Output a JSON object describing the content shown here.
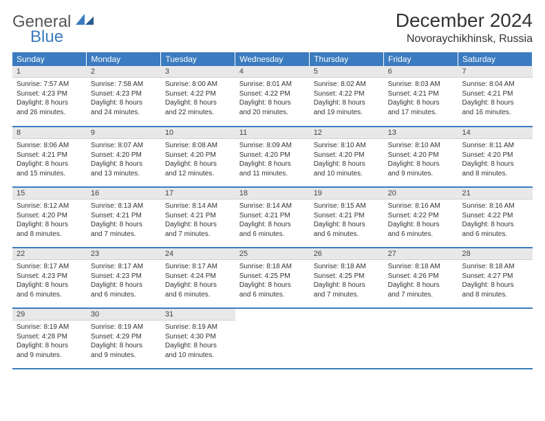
{
  "brand": {
    "part1": "General",
    "part2": "Blue"
  },
  "title": "December 2024",
  "location": "Novoraychikhinsk, Russia",
  "colors": {
    "header_bg": "#3b7bbf",
    "header_fg": "#ffffff",
    "daynum_bg": "#e8e8e8",
    "border": "#3b7bbf"
  },
  "weekdays": [
    "Sunday",
    "Monday",
    "Tuesday",
    "Wednesday",
    "Thursday",
    "Friday",
    "Saturday"
  ],
  "weeks": [
    [
      {
        "n": "1",
        "sr": "Sunrise: 7:57 AM",
        "ss": "Sunset: 4:23 PM",
        "dl1": "Daylight: 8 hours",
        "dl2": "and 26 minutes."
      },
      {
        "n": "2",
        "sr": "Sunrise: 7:58 AM",
        "ss": "Sunset: 4:23 PM",
        "dl1": "Daylight: 8 hours",
        "dl2": "and 24 minutes."
      },
      {
        "n": "3",
        "sr": "Sunrise: 8:00 AM",
        "ss": "Sunset: 4:22 PM",
        "dl1": "Daylight: 8 hours",
        "dl2": "and 22 minutes."
      },
      {
        "n": "4",
        "sr": "Sunrise: 8:01 AM",
        "ss": "Sunset: 4:22 PM",
        "dl1": "Daylight: 8 hours",
        "dl2": "and 20 minutes."
      },
      {
        "n": "5",
        "sr": "Sunrise: 8:02 AM",
        "ss": "Sunset: 4:22 PM",
        "dl1": "Daylight: 8 hours",
        "dl2": "and 19 minutes."
      },
      {
        "n": "6",
        "sr": "Sunrise: 8:03 AM",
        "ss": "Sunset: 4:21 PM",
        "dl1": "Daylight: 8 hours",
        "dl2": "and 17 minutes."
      },
      {
        "n": "7",
        "sr": "Sunrise: 8:04 AM",
        "ss": "Sunset: 4:21 PM",
        "dl1": "Daylight: 8 hours",
        "dl2": "and 16 minutes."
      }
    ],
    [
      {
        "n": "8",
        "sr": "Sunrise: 8:06 AM",
        "ss": "Sunset: 4:21 PM",
        "dl1": "Daylight: 8 hours",
        "dl2": "and 15 minutes."
      },
      {
        "n": "9",
        "sr": "Sunrise: 8:07 AM",
        "ss": "Sunset: 4:20 PM",
        "dl1": "Daylight: 8 hours",
        "dl2": "and 13 minutes."
      },
      {
        "n": "10",
        "sr": "Sunrise: 8:08 AM",
        "ss": "Sunset: 4:20 PM",
        "dl1": "Daylight: 8 hours",
        "dl2": "and 12 minutes."
      },
      {
        "n": "11",
        "sr": "Sunrise: 8:09 AM",
        "ss": "Sunset: 4:20 PM",
        "dl1": "Daylight: 8 hours",
        "dl2": "and 11 minutes."
      },
      {
        "n": "12",
        "sr": "Sunrise: 8:10 AM",
        "ss": "Sunset: 4:20 PM",
        "dl1": "Daylight: 8 hours",
        "dl2": "and 10 minutes."
      },
      {
        "n": "13",
        "sr": "Sunrise: 8:10 AM",
        "ss": "Sunset: 4:20 PM",
        "dl1": "Daylight: 8 hours",
        "dl2": "and 9 minutes."
      },
      {
        "n": "14",
        "sr": "Sunrise: 8:11 AM",
        "ss": "Sunset: 4:20 PM",
        "dl1": "Daylight: 8 hours",
        "dl2": "and 8 minutes."
      }
    ],
    [
      {
        "n": "15",
        "sr": "Sunrise: 8:12 AM",
        "ss": "Sunset: 4:20 PM",
        "dl1": "Daylight: 8 hours",
        "dl2": "and 8 minutes."
      },
      {
        "n": "16",
        "sr": "Sunrise: 8:13 AM",
        "ss": "Sunset: 4:21 PM",
        "dl1": "Daylight: 8 hours",
        "dl2": "and 7 minutes."
      },
      {
        "n": "17",
        "sr": "Sunrise: 8:14 AM",
        "ss": "Sunset: 4:21 PM",
        "dl1": "Daylight: 8 hours",
        "dl2": "and 7 minutes."
      },
      {
        "n": "18",
        "sr": "Sunrise: 8:14 AM",
        "ss": "Sunset: 4:21 PM",
        "dl1": "Daylight: 8 hours",
        "dl2": "and 6 minutes."
      },
      {
        "n": "19",
        "sr": "Sunrise: 8:15 AM",
        "ss": "Sunset: 4:21 PM",
        "dl1": "Daylight: 8 hours",
        "dl2": "and 6 minutes."
      },
      {
        "n": "20",
        "sr": "Sunrise: 8:16 AM",
        "ss": "Sunset: 4:22 PM",
        "dl1": "Daylight: 8 hours",
        "dl2": "and 6 minutes."
      },
      {
        "n": "21",
        "sr": "Sunrise: 8:16 AM",
        "ss": "Sunset: 4:22 PM",
        "dl1": "Daylight: 8 hours",
        "dl2": "and 6 minutes."
      }
    ],
    [
      {
        "n": "22",
        "sr": "Sunrise: 8:17 AM",
        "ss": "Sunset: 4:23 PM",
        "dl1": "Daylight: 8 hours",
        "dl2": "and 6 minutes."
      },
      {
        "n": "23",
        "sr": "Sunrise: 8:17 AM",
        "ss": "Sunset: 4:23 PM",
        "dl1": "Daylight: 8 hours",
        "dl2": "and 6 minutes."
      },
      {
        "n": "24",
        "sr": "Sunrise: 8:17 AM",
        "ss": "Sunset: 4:24 PM",
        "dl1": "Daylight: 8 hours",
        "dl2": "and 6 minutes."
      },
      {
        "n": "25",
        "sr": "Sunrise: 8:18 AM",
        "ss": "Sunset: 4:25 PM",
        "dl1": "Daylight: 8 hours",
        "dl2": "and 6 minutes."
      },
      {
        "n": "26",
        "sr": "Sunrise: 8:18 AM",
        "ss": "Sunset: 4:25 PM",
        "dl1": "Daylight: 8 hours",
        "dl2": "and 7 minutes."
      },
      {
        "n": "27",
        "sr": "Sunrise: 8:18 AM",
        "ss": "Sunset: 4:26 PM",
        "dl1": "Daylight: 8 hours",
        "dl2": "and 7 minutes."
      },
      {
        "n": "28",
        "sr": "Sunrise: 8:18 AM",
        "ss": "Sunset: 4:27 PM",
        "dl1": "Daylight: 8 hours",
        "dl2": "and 8 minutes."
      }
    ],
    [
      {
        "n": "29",
        "sr": "Sunrise: 8:19 AM",
        "ss": "Sunset: 4:28 PM",
        "dl1": "Daylight: 8 hours",
        "dl2": "and 9 minutes."
      },
      {
        "n": "30",
        "sr": "Sunrise: 8:19 AM",
        "ss": "Sunset: 4:29 PM",
        "dl1": "Daylight: 8 hours",
        "dl2": "and 9 minutes."
      },
      {
        "n": "31",
        "sr": "Sunrise: 8:19 AM",
        "ss": "Sunset: 4:30 PM",
        "dl1": "Daylight: 8 hours",
        "dl2": "and 10 minutes."
      },
      null,
      null,
      null,
      null
    ]
  ]
}
